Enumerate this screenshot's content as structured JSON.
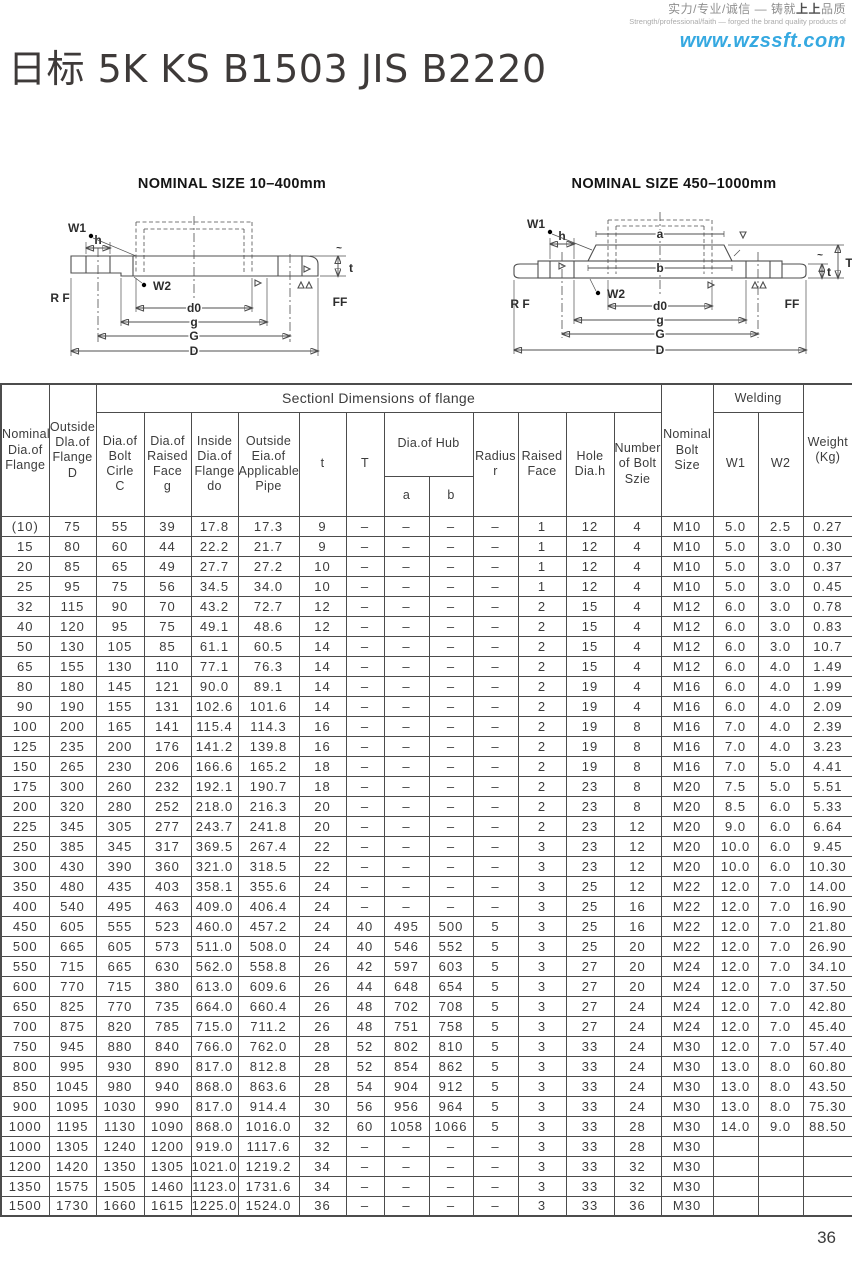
{
  "header": {
    "brand_line_cn_prefix": "实力/专业/诚信 — 铸就",
    "brand_line_cn_bold": "上上",
    "brand_line_cn_suffix": "品质",
    "brand_line_en": "Strength/professional/faith — forged the brand quality products of",
    "website": "www.wzssft.com",
    "website_color": "#36a9e1"
  },
  "title": "日标 5K KS B1503 JIS B2220",
  "diagrams": [
    {
      "title": "NOMINAL SIZE 10–400mm",
      "labels": {
        "w1": "W1",
        "w2": "W2",
        "h": "h",
        "t": "t",
        "approx": "~",
        "d0": "d0",
        "g": "g",
        "G": "G",
        "D": "D",
        "rf": "R F",
        "ff": "FF"
      }
    },
    {
      "title": "NOMINAL SIZE 450–1000mm",
      "labels": {
        "w1": "W1",
        "w2": "W2",
        "h": "h",
        "a": "a",
        "b": "b",
        "t": "t",
        "T": "T",
        "approx": "~",
        "d0": "d0",
        "g": "g",
        "G": "G",
        "D": "D",
        "rf": "R F",
        "ff": "FF"
      }
    }
  ],
  "table": {
    "span_headers": {
      "section": "Sectionl Dimensions of flange",
      "dia_of_hub": "Dia.of Hub",
      "welding": "Welding"
    },
    "headers": {
      "nominal": "Nominal\nDia.of\nFlange",
      "outside_d": "Outside\nDla.of\nFlange\nD",
      "bolt_circle": "Dia.of\nBolt\nCirle\nC",
      "raised_face_g": "Dia.of\nRaised\nFace\ng",
      "inside_do": "Inside\nDia.of\nFlange\ndo",
      "outside_pipe": "Outside\nEia.of\nApplicable\nPipe",
      "t_lower": "t",
      "t_upper": "T",
      "a": "a",
      "b": "b",
      "radius_r": "Radius\nr",
      "raised_face": "Raised\nFace",
      "hole_dia": "Hole\nDia.h",
      "num_bolt": "Number\nof Bolt\nSzie",
      "bolt_size": "Nominal\nBolt\nSize",
      "w1": "W1",
      "w2": "W2",
      "weight": "Weight\n(Kg)"
    },
    "rows": [
      [
        "(10)",
        "75",
        "55",
        "39",
        "17.8",
        "17.3",
        "9",
        "–",
        "–",
        "–",
        "–",
        "1",
        "12",
        "4",
        "M10",
        "5.0",
        "2.5",
        "0.27"
      ],
      [
        "15",
        "80",
        "60",
        "44",
        "22.2",
        "21.7",
        "9",
        "–",
        "–",
        "–",
        "–",
        "1",
        "12",
        "4",
        "M10",
        "5.0",
        "3.0",
        "0.30"
      ],
      [
        "20",
        "85",
        "65",
        "49",
        "27.7",
        "27.2",
        "10",
        "–",
        "–",
        "–",
        "–",
        "1",
        "12",
        "4",
        "M10",
        "5.0",
        "3.0",
        "0.37"
      ],
      [
        "25",
        "95",
        "75",
        "56",
        "34.5",
        "34.0",
        "10",
        "–",
        "–",
        "–",
        "–",
        "1",
        "12",
        "4",
        "M10",
        "5.0",
        "3.0",
        "0.45"
      ],
      [
        "32",
        "115",
        "90",
        "70",
        "43.2",
        "72.7",
        "12",
        "–",
        "–",
        "–",
        "–",
        "2",
        "15",
        "4",
        "M12",
        "6.0",
        "3.0",
        "0.78"
      ],
      [
        "40",
        "120",
        "95",
        "75",
        "49.1",
        "48.6",
        "12",
        "–",
        "–",
        "–",
        "–",
        "2",
        "15",
        "4",
        "M12",
        "6.0",
        "3.0",
        "0.83"
      ],
      [
        "50",
        "130",
        "105",
        "85",
        "61.1",
        "60.5",
        "14",
        "–",
        "–",
        "–",
        "–",
        "2",
        "15",
        "4",
        "M12",
        "6.0",
        "3.0",
        "10.7"
      ],
      [
        "65",
        "155",
        "130",
        "110",
        "77.1",
        "76.3",
        "14",
        "–",
        "–",
        "–",
        "–",
        "2",
        "15",
        "4",
        "M12",
        "6.0",
        "4.0",
        "1.49"
      ],
      [
        "80",
        "180",
        "145",
        "121",
        "90.0",
        "89.1",
        "14",
        "–",
        "–",
        "–",
        "–",
        "2",
        "19",
        "4",
        "M16",
        "6.0",
        "4.0",
        "1.99"
      ],
      [
        "90",
        "190",
        "155",
        "131",
        "102.6",
        "101.6",
        "14",
        "–",
        "–",
        "–",
        "–",
        "2",
        "19",
        "4",
        "M16",
        "6.0",
        "4.0",
        "2.09"
      ],
      [
        "100",
        "200",
        "165",
        "141",
        "115.4",
        "114.3",
        "16",
        "–",
        "–",
        "–",
        "–",
        "2",
        "19",
        "8",
        "M16",
        "7.0",
        "4.0",
        "2.39"
      ],
      [
        "125",
        "235",
        "200",
        "176",
        "141.2",
        "139.8",
        "16",
        "–",
        "–",
        "–",
        "–",
        "2",
        "19",
        "8",
        "M16",
        "7.0",
        "4.0",
        "3.23"
      ],
      [
        "150",
        "265",
        "230",
        "206",
        "166.6",
        "165.2",
        "18",
        "–",
        "–",
        "–",
        "–",
        "2",
        "19",
        "8",
        "M16",
        "7.0",
        "5.0",
        "4.41"
      ],
      [
        "175",
        "300",
        "260",
        "232",
        "192.1",
        "190.7",
        "18",
        "–",
        "–",
        "–",
        "–",
        "2",
        "23",
        "8",
        "M20",
        "7.5",
        "5.0",
        "5.51"
      ],
      [
        "200",
        "320",
        "280",
        "252",
        "218.0",
        "216.3",
        "20",
        "–",
        "–",
        "–",
        "–",
        "2",
        "23",
        "8",
        "M20",
        "8.5",
        "6.0",
        "5.33"
      ],
      [
        "225",
        "345",
        "305",
        "277",
        "243.7",
        "241.8",
        "20",
        "–",
        "–",
        "–",
        "–",
        "2",
        "23",
        "12",
        "M20",
        "9.0",
        "6.0",
        "6.64"
      ],
      [
        "250",
        "385",
        "345",
        "317",
        "369.5",
        "267.4",
        "22",
        "–",
        "–",
        "–",
        "–",
        "3",
        "23",
        "12",
        "M20",
        "10.0",
        "6.0",
        "9.45"
      ],
      [
        "300",
        "430",
        "390",
        "360",
        "321.0",
        "318.5",
        "22",
        "–",
        "–",
        "–",
        "–",
        "3",
        "23",
        "12",
        "M20",
        "10.0",
        "6.0",
        "10.30"
      ],
      [
        "350",
        "480",
        "435",
        "403",
        "358.1",
        "355.6",
        "24",
        "–",
        "–",
        "–",
        "–",
        "3",
        "25",
        "12",
        "M22",
        "12.0",
        "7.0",
        "14.00"
      ],
      [
        "400",
        "540",
        "495",
        "463",
        "409.0",
        "406.4",
        "24",
        "–",
        "–",
        "–",
        "–",
        "3",
        "25",
        "16",
        "M22",
        "12.0",
        "7.0",
        "16.90"
      ],
      [
        "450",
        "605",
        "555",
        "523",
        "460.0",
        "457.2",
        "24",
        "40",
        "495",
        "500",
        "5",
        "3",
        "25",
        "16",
        "M22",
        "12.0",
        "7.0",
        "21.80"
      ],
      [
        "500",
        "665",
        "605",
        "573",
        "511.0",
        "508.0",
        "24",
        "40",
        "546",
        "552",
        "5",
        "3",
        "25",
        "20",
        "M22",
        "12.0",
        "7.0",
        "26.90"
      ],
      [
        "550",
        "715",
        "665",
        "630",
        "562.0",
        "558.8",
        "26",
        "42",
        "597",
        "603",
        "5",
        "3",
        "27",
        "20",
        "M24",
        "12.0",
        "7.0",
        "34.10"
      ],
      [
        "600",
        "770",
        "715",
        "380",
        "613.0",
        "609.6",
        "26",
        "44",
        "648",
        "654",
        "5",
        "3",
        "27",
        "20",
        "M24",
        "12.0",
        "7.0",
        "37.50"
      ],
      [
        "650",
        "825",
        "770",
        "735",
        "664.0",
        "660.4",
        "26",
        "48",
        "702",
        "708",
        "5",
        "3",
        "27",
        "24",
        "M24",
        "12.0",
        "7.0",
        "42.80"
      ],
      [
        "700",
        "875",
        "820",
        "785",
        "715.0",
        "711.2",
        "26",
        "48",
        "751",
        "758",
        "5",
        "3",
        "27",
        "24",
        "M24",
        "12.0",
        "7.0",
        "45.40"
      ],
      [
        "750",
        "945",
        "880",
        "840",
        "766.0",
        "762.0",
        "28",
        "52",
        "802",
        "810",
        "5",
        "3",
        "33",
        "24",
        "M30",
        "12.0",
        "7.0",
        "57.40"
      ],
      [
        "800",
        "995",
        "930",
        "890",
        "817.0",
        "812.8",
        "28",
        "52",
        "854",
        "862",
        "5",
        "3",
        "33",
        "24",
        "M30",
        "13.0",
        "8.0",
        "60.80"
      ],
      [
        "850",
        "1045",
        "980",
        "940",
        "868.0",
        "863.6",
        "28",
        "54",
        "904",
        "912",
        "5",
        "3",
        "33",
        "24",
        "M30",
        "13.0",
        "8.0",
        "43.50"
      ],
      [
        "900",
        "1095",
        "1030",
        "990",
        "817.0",
        "914.4",
        "30",
        "56",
        "956",
        "964",
        "5",
        "3",
        "33",
        "24",
        "M30",
        "13.0",
        "8.0",
        "75.30"
      ],
      [
        "1000",
        "1195",
        "1130",
        "1090",
        "868.0",
        "1016.0",
        "32",
        "60",
        "1058",
        "1066",
        "5",
        "3",
        "33",
        "28",
        "M30",
        "14.0",
        "9.0",
        "88.50"
      ],
      [
        "1000",
        "1305",
        "1240",
        "1200",
        "919.0",
        "1117.6",
        "32",
        "–",
        "–",
        "–",
        "–",
        "3",
        "33",
        "28",
        "M30",
        "",
        "",
        ""
      ],
      [
        "1200",
        "1420",
        "1350",
        "1305",
        "1021.0",
        "1219.2",
        "34",
        "–",
        "–",
        "–",
        "–",
        "3",
        "33",
        "32",
        "M30",
        "",
        "",
        ""
      ],
      [
        "1350",
        "1575",
        "1505",
        "1460",
        "1123.0",
        "1731.6",
        "34",
        "–",
        "–",
        "–",
        "–",
        "3",
        "33",
        "32",
        "M30",
        "",
        "",
        ""
      ],
      [
        "1500",
        "1730",
        "1660",
        "1615",
        "1225.0",
        "1524.0",
        "36",
        "–",
        "–",
        "–",
        "–",
        "3",
        "33",
        "36",
        "M30",
        "",
        "",
        ""
      ]
    ]
  },
  "page": {
    "number": "36"
  }
}
